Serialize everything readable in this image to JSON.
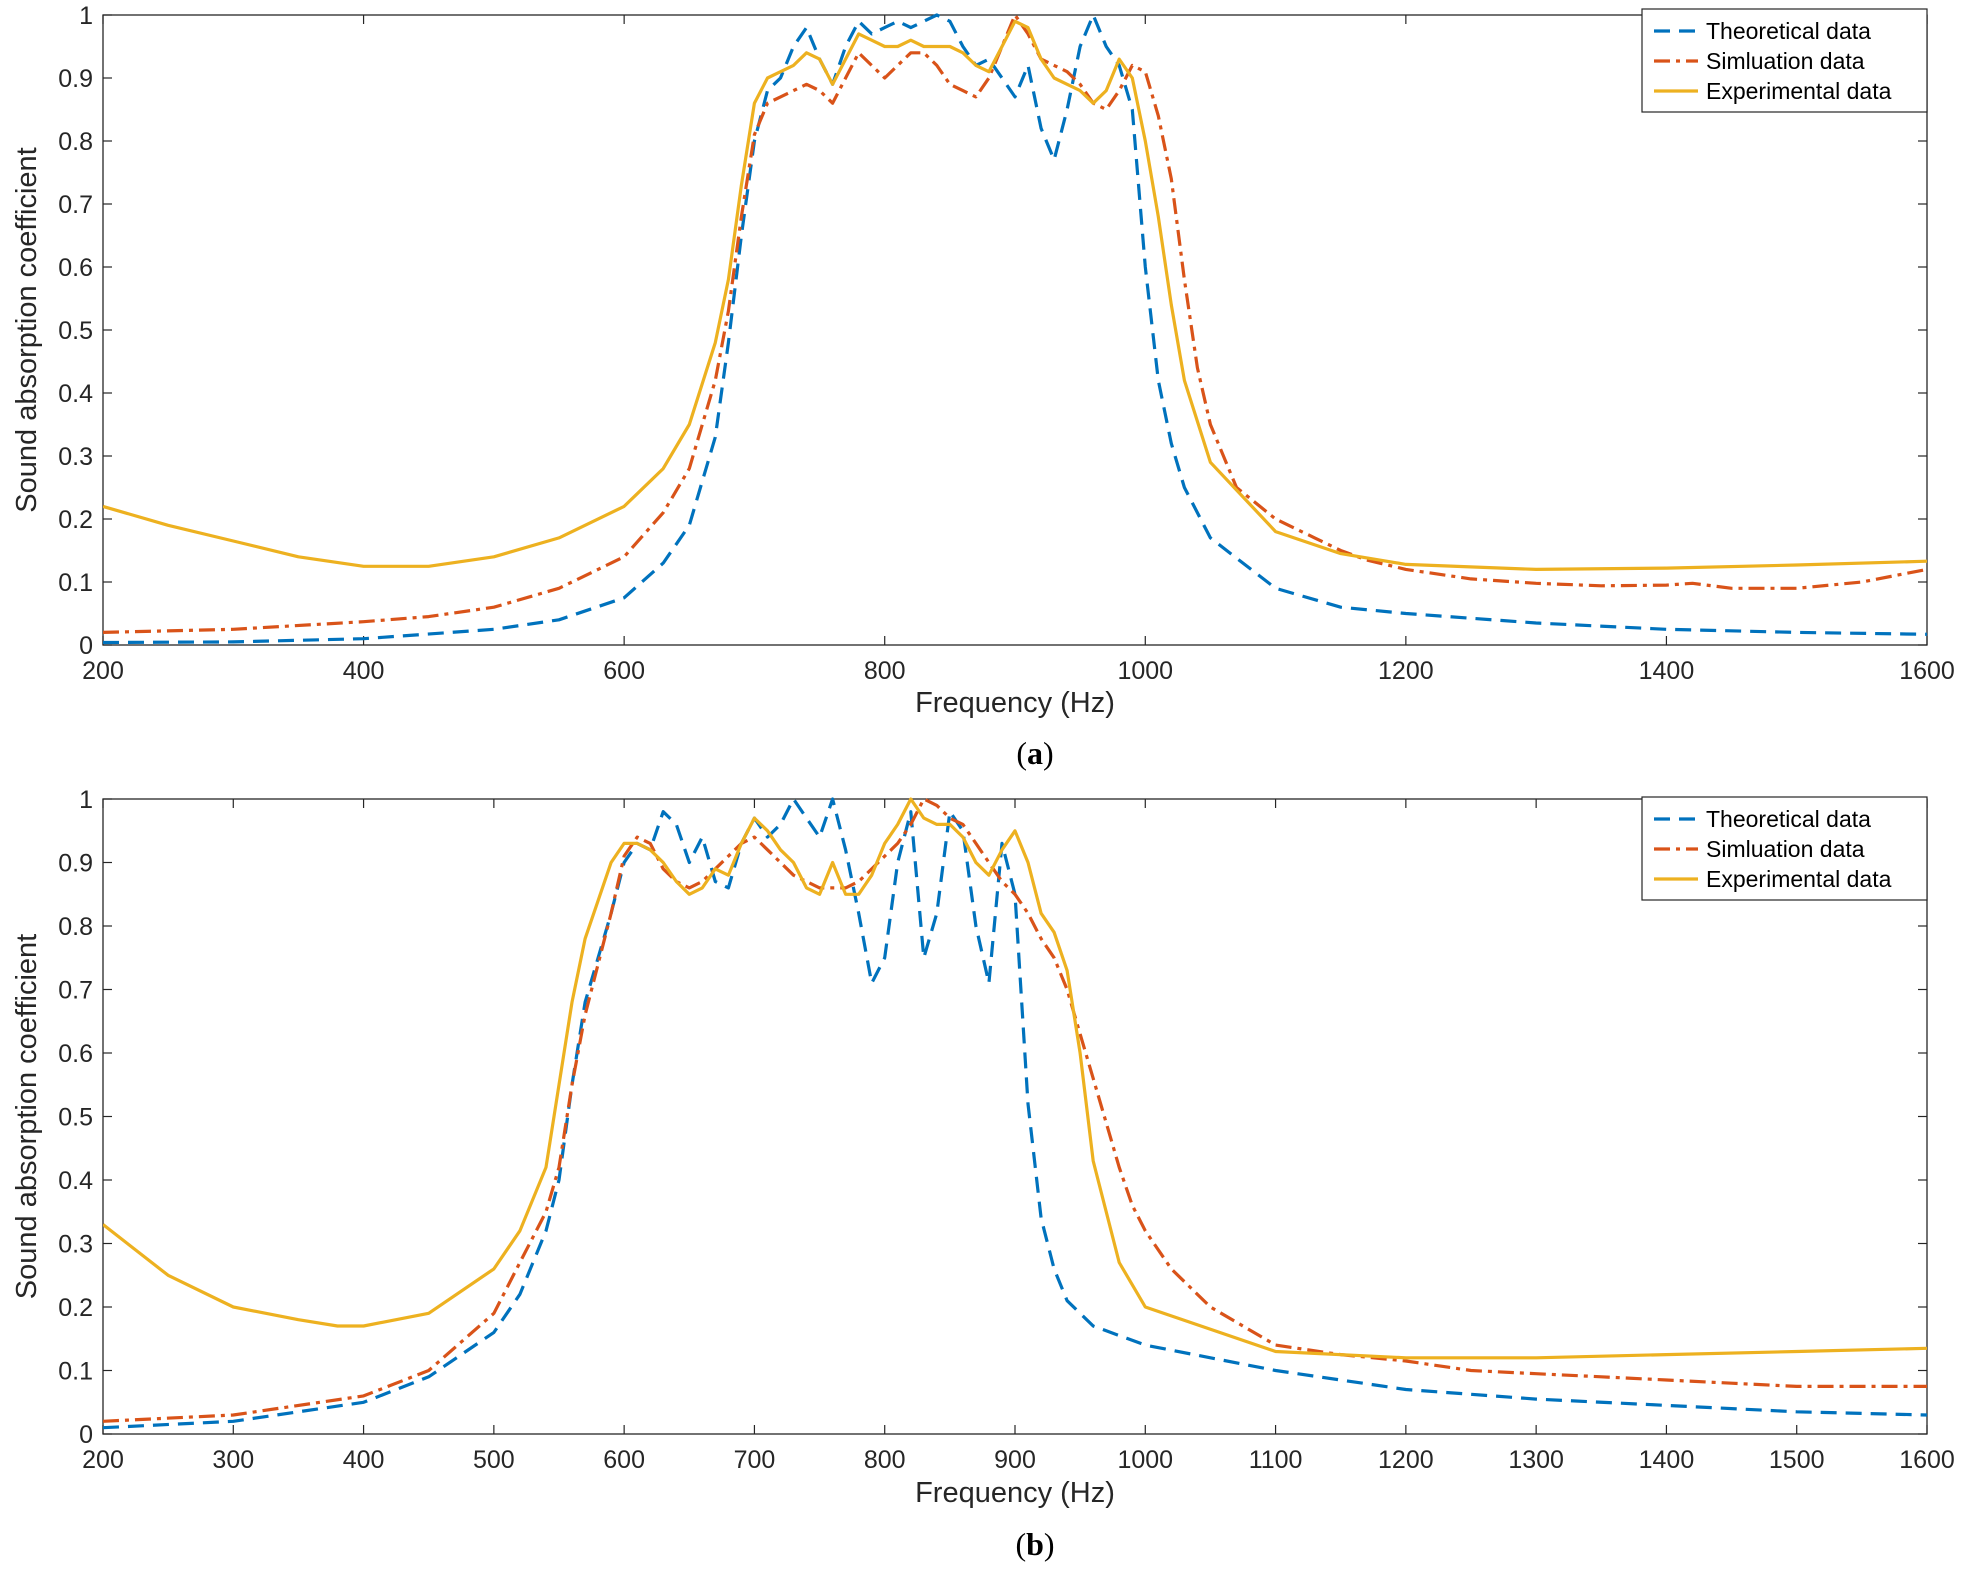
{
  "chart_data": [
    {
      "id": "a",
      "type": "line",
      "panel_label": "a",
      "xlabel": "Frequency (Hz)",
      "ylabel": "Sound absorption coefficient",
      "xlim": [
        200,
        1600
      ],
      "ylim": [
        0,
        1
      ],
      "xticks": [
        "200",
        "400",
        "600",
        "800",
        "1000",
        "1200",
        "1400",
        "1600"
      ],
      "yticks": [
        "0",
        "0.1",
        "0.2",
        "0.3",
        "0.4",
        "0.5",
        "0.6",
        "0.7",
        "0.8",
        "0.9",
        "1"
      ],
      "legend_position": "top-right",
      "series": [
        {
          "name": "Theoretical data",
          "color": "#0072BD",
          "style": "dashed",
          "x": [
            200,
            300,
            400,
            500,
            550,
            600,
            630,
            650,
            670,
            680,
            690,
            700,
            710,
            720,
            730,
            740,
            750,
            760,
            770,
            780,
            790,
            800,
            810,
            820,
            830,
            840,
            850,
            860,
            870,
            880,
            890,
            900,
            910,
            920,
            930,
            940,
            950,
            960,
            970,
            980,
            990,
            1000,
            1010,
            1020,
            1030,
            1050,
            1100,
            1150,
            1200,
            1300,
            1400,
            1500,
            1600
          ],
          "y": [
            0.004,
            0.005,
            0.01,
            0.025,
            0.04,
            0.075,
            0.13,
            0.19,
            0.33,
            0.48,
            0.65,
            0.8,
            0.88,
            0.9,
            0.95,
            0.98,
            0.93,
            0.89,
            0.95,
            0.99,
            0.97,
            0.98,
            0.99,
            0.98,
            0.99,
            1.0,
            0.99,
            0.95,
            0.92,
            0.93,
            0.9,
            0.87,
            0.92,
            0.82,
            0.77,
            0.85,
            0.95,
            1.0,
            0.95,
            0.92,
            0.85,
            0.6,
            0.42,
            0.32,
            0.25,
            0.17,
            0.09,
            0.06,
            0.05,
            0.035,
            0.025,
            0.02,
            0.017
          ]
        },
        {
          "name": "Simluation data",
          "color": "#D95319",
          "style": "dashdot",
          "x": [
            200,
            300,
            400,
            450,
            500,
            550,
            600,
            630,
            650,
            670,
            680,
            690,
            700,
            710,
            720,
            730,
            740,
            750,
            760,
            770,
            780,
            790,
            800,
            810,
            820,
            830,
            840,
            850,
            860,
            870,
            880,
            890,
            900,
            910,
            920,
            930,
            940,
            950,
            960,
            970,
            980,
            990,
            1000,
            1010,
            1020,
            1030,
            1040,
            1050,
            1070,
            1100,
            1130,
            1150,
            1170,
            1200,
            1250,
            1300,
            1350,
            1400,
            1420,
            1450,
            1500,
            1550,
            1600
          ],
          "y": [
            0.02,
            0.025,
            0.037,
            0.045,
            0.06,
            0.09,
            0.14,
            0.21,
            0.28,
            0.42,
            0.53,
            0.68,
            0.81,
            0.86,
            0.87,
            0.88,
            0.89,
            0.88,
            0.86,
            0.9,
            0.94,
            0.92,
            0.9,
            0.92,
            0.94,
            0.94,
            0.92,
            0.89,
            0.88,
            0.87,
            0.9,
            0.95,
            1.0,
            0.97,
            0.93,
            0.92,
            0.91,
            0.89,
            0.86,
            0.85,
            0.88,
            0.92,
            0.91,
            0.84,
            0.74,
            0.58,
            0.44,
            0.35,
            0.25,
            0.2,
            0.17,
            0.15,
            0.135,
            0.12,
            0.105,
            0.098,
            0.094,
            0.095,
            0.098,
            0.09,
            0.09,
            0.1,
            0.12
          ]
        },
        {
          "name": "Experimental data",
          "color": "#EDB120",
          "style": "solid",
          "x": [
            200,
            250,
            300,
            350,
            400,
            450,
            500,
            550,
            600,
            630,
            650,
            670,
            680,
            690,
            700,
            710,
            720,
            730,
            740,
            750,
            760,
            770,
            780,
            790,
            800,
            810,
            820,
            830,
            840,
            850,
            860,
            870,
            880,
            890,
            900,
            910,
            920,
            930,
            940,
            950,
            960,
            970,
            980,
            990,
            1000,
            1010,
            1020,
            1030,
            1050,
            1100,
            1150,
            1200,
            1300,
            1400,
            1500,
            1600
          ],
          "y": [
            0.22,
            0.19,
            0.165,
            0.14,
            0.125,
            0.125,
            0.14,
            0.17,
            0.22,
            0.28,
            0.35,
            0.48,
            0.58,
            0.73,
            0.86,
            0.9,
            0.91,
            0.92,
            0.94,
            0.93,
            0.89,
            0.93,
            0.97,
            0.96,
            0.95,
            0.95,
            0.96,
            0.95,
            0.95,
            0.95,
            0.94,
            0.92,
            0.91,
            0.95,
            0.99,
            0.98,
            0.93,
            0.9,
            0.89,
            0.88,
            0.86,
            0.88,
            0.93,
            0.9,
            0.8,
            0.68,
            0.54,
            0.42,
            0.29,
            0.18,
            0.145,
            0.128,
            0.12,
            0.122,
            0.127,
            0.133
          ]
        }
      ]
    },
    {
      "id": "b",
      "type": "line",
      "panel_label": "b",
      "xlabel": "Frequency (Hz)",
      "ylabel": "Sound absorption coefficient",
      "xlim": [
        200,
        1600
      ],
      "ylim": [
        0,
        1
      ],
      "xticks": [
        "200",
        "300",
        "400",
        "500",
        "600",
        "700",
        "800",
        "900",
        "1000",
        "1100",
        "1200",
        "1300",
        "1400",
        "1500",
        "1600"
      ],
      "yticks": [
        "0",
        "0.1",
        "0.2",
        "0.3",
        "0.4",
        "0.5",
        "0.6",
        "0.7",
        "0.8",
        "0.9",
        "1"
      ],
      "legend_position": "top-right",
      "series": [
        {
          "name": "Theoretical data",
          "color": "#0072BD",
          "style": "dashed",
          "x": [
            200,
            300,
            400,
            450,
            500,
            520,
            540,
            550,
            560,
            570,
            580,
            590,
            600,
            610,
            620,
            630,
            640,
            650,
            660,
            670,
            680,
            690,
            700,
            710,
            720,
            730,
            740,
            750,
            760,
            770,
            780,
            790,
            800,
            810,
            820,
            830,
            840,
            850,
            860,
            870,
            880,
            890,
            900,
            910,
            920,
            930,
            940,
            960,
            1000,
            1100,
            1200,
            1300,
            1400,
            1500,
            1600
          ],
          "y": [
            0.01,
            0.02,
            0.05,
            0.09,
            0.16,
            0.22,
            0.32,
            0.4,
            0.55,
            0.68,
            0.75,
            0.82,
            0.9,
            0.93,
            0.92,
            0.98,
            0.96,
            0.9,
            0.94,
            0.87,
            0.86,
            0.93,
            0.97,
            0.94,
            0.96,
            1.0,
            0.97,
            0.94,
            1.0,
            0.92,
            0.82,
            0.71,
            0.75,
            0.9,
            0.98,
            0.75,
            0.82,
            0.98,
            0.95,
            0.8,
            0.71,
            0.93,
            0.85,
            0.52,
            0.34,
            0.26,
            0.21,
            0.17,
            0.14,
            0.1,
            0.07,
            0.055,
            0.045,
            0.035,
            0.03
          ]
        },
        {
          "name": "Simluation data",
          "color": "#D95319",
          "style": "dashdot",
          "x": [
            200,
            300,
            400,
            450,
            500,
            520,
            540,
            550,
            560,
            570,
            580,
            590,
            600,
            610,
            620,
            630,
            640,
            650,
            660,
            670,
            680,
            690,
            700,
            710,
            720,
            730,
            740,
            750,
            760,
            770,
            780,
            790,
            800,
            810,
            820,
            830,
            840,
            850,
            860,
            870,
            880,
            890,
            900,
            910,
            920,
            930,
            940,
            950,
            960,
            970,
            980,
            990,
            1000,
            1020,
            1050,
            1100,
            1150,
            1200,
            1250,
            1300,
            1350,
            1400,
            1450,
            1500,
            1550,
            1600
          ],
          "y": [
            0.02,
            0.03,
            0.06,
            0.1,
            0.19,
            0.27,
            0.35,
            0.42,
            0.55,
            0.66,
            0.74,
            0.82,
            0.91,
            0.94,
            0.93,
            0.89,
            0.87,
            0.86,
            0.87,
            0.89,
            0.91,
            0.93,
            0.94,
            0.92,
            0.9,
            0.88,
            0.87,
            0.86,
            0.86,
            0.86,
            0.87,
            0.89,
            0.91,
            0.93,
            0.96,
            1.0,
            0.99,
            0.97,
            0.96,
            0.93,
            0.9,
            0.87,
            0.85,
            0.82,
            0.78,
            0.75,
            0.7,
            0.63,
            0.56,
            0.49,
            0.42,
            0.36,
            0.32,
            0.26,
            0.2,
            0.14,
            0.125,
            0.115,
            0.1,
            0.095,
            0.09,
            0.085,
            0.08,
            0.075,
            0.075,
            0.075
          ]
        },
        {
          "name": "Experimental data",
          "color": "#EDB120",
          "style": "solid",
          "x": [
            200,
            250,
            300,
            350,
            380,
            400,
            450,
            500,
            520,
            540,
            550,
            560,
            570,
            580,
            590,
            600,
            610,
            620,
            630,
            640,
            650,
            660,
            670,
            680,
            690,
            700,
            710,
            720,
            730,
            740,
            750,
            760,
            770,
            780,
            790,
            800,
            810,
            820,
            830,
            840,
            850,
            860,
            870,
            880,
            890,
            900,
            910,
            920,
            930,
            940,
            950,
            960,
            980,
            1000,
            1100,
            1200,
            1300,
            1400,
            1500,
            1600
          ],
          "y": [
            0.33,
            0.25,
            0.2,
            0.18,
            0.17,
            0.17,
            0.19,
            0.26,
            0.32,
            0.42,
            0.55,
            0.68,
            0.78,
            0.84,
            0.9,
            0.93,
            0.93,
            0.92,
            0.9,
            0.87,
            0.85,
            0.86,
            0.89,
            0.88,
            0.93,
            0.97,
            0.95,
            0.92,
            0.9,
            0.86,
            0.85,
            0.9,
            0.85,
            0.85,
            0.88,
            0.93,
            0.96,
            1.0,
            0.97,
            0.96,
            0.96,
            0.94,
            0.9,
            0.88,
            0.92,
            0.95,
            0.9,
            0.82,
            0.79,
            0.73,
            0.6,
            0.43,
            0.27,
            0.2,
            0.13,
            0.12,
            0.12,
            0.125,
            0.13,
            0.135
          ]
        }
      ]
    }
  ]
}
